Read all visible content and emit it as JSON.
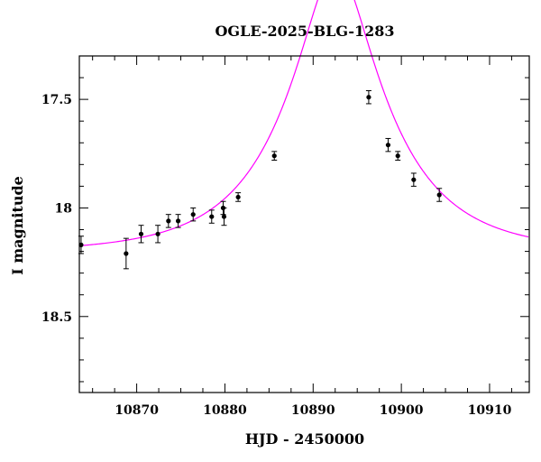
{
  "chart_data": {
    "type": "scatter",
    "title": "OGLE-2025-BLG-1283",
    "xlabel": "HJD - 2450000",
    "ylabel": "I magnitude",
    "xlim": [
      10863.5,
      10914.5
    ],
    "ylim": [
      18.85,
      17.3
    ],
    "y_inverted": true,
    "x_ticks": [
      10870,
      10880,
      10890,
      10900,
      10910
    ],
    "y_ticks": [
      17.5,
      18,
      18.5
    ],
    "y_tick_labels": [
      "17.5",
      "18",
      "18.5"
    ],
    "grid": false,
    "series": [
      {
        "type": "errorbar",
        "color": "#000000",
        "points": [
          {
            "x": 10863.7,
            "y": 18.17,
            "err": 0.04
          },
          {
            "x": 10868.8,
            "y": 18.21,
            "err": 0.07
          },
          {
            "x": 10870.5,
            "y": 18.12,
            "err": 0.04
          },
          {
            "x": 10872.4,
            "y": 18.12,
            "err": 0.04
          },
          {
            "x": 10873.6,
            "y": 18.06,
            "err": 0.03
          },
          {
            "x": 10874.7,
            "y": 18.06,
            "err": 0.03
          },
          {
            "x": 10876.4,
            "y": 18.03,
            "err": 0.03
          },
          {
            "x": 10878.5,
            "y": 18.04,
            "err": 0.03
          },
          {
            "x": 10879.8,
            "y": 18.0,
            "err": 0.03
          },
          {
            "x": 10879.9,
            "y": 18.04,
            "err": 0.04
          },
          {
            "x": 10881.5,
            "y": 17.95,
            "err": 0.02
          },
          {
            "x": 10885.6,
            "y": 17.76,
            "err": 0.02
          },
          {
            "x": 10896.3,
            "y": 17.49,
            "err": 0.03
          },
          {
            "x": 10898.5,
            "y": 17.71,
            "err": 0.03
          },
          {
            "x": 10899.6,
            "y": 17.76,
            "err": 0.02
          },
          {
            "x": 10901.4,
            "y": 17.87,
            "err": 0.03
          },
          {
            "x": 10904.3,
            "y": 17.94,
            "err": 0.03
          }
        ]
      },
      {
        "type": "line",
        "color": "#ff00ff",
        "model": {
          "t0": 10892.6,
          "tE": 11.5,
          "u0": 0.31,
          "I_base": 18.205
        }
      }
    ]
  }
}
